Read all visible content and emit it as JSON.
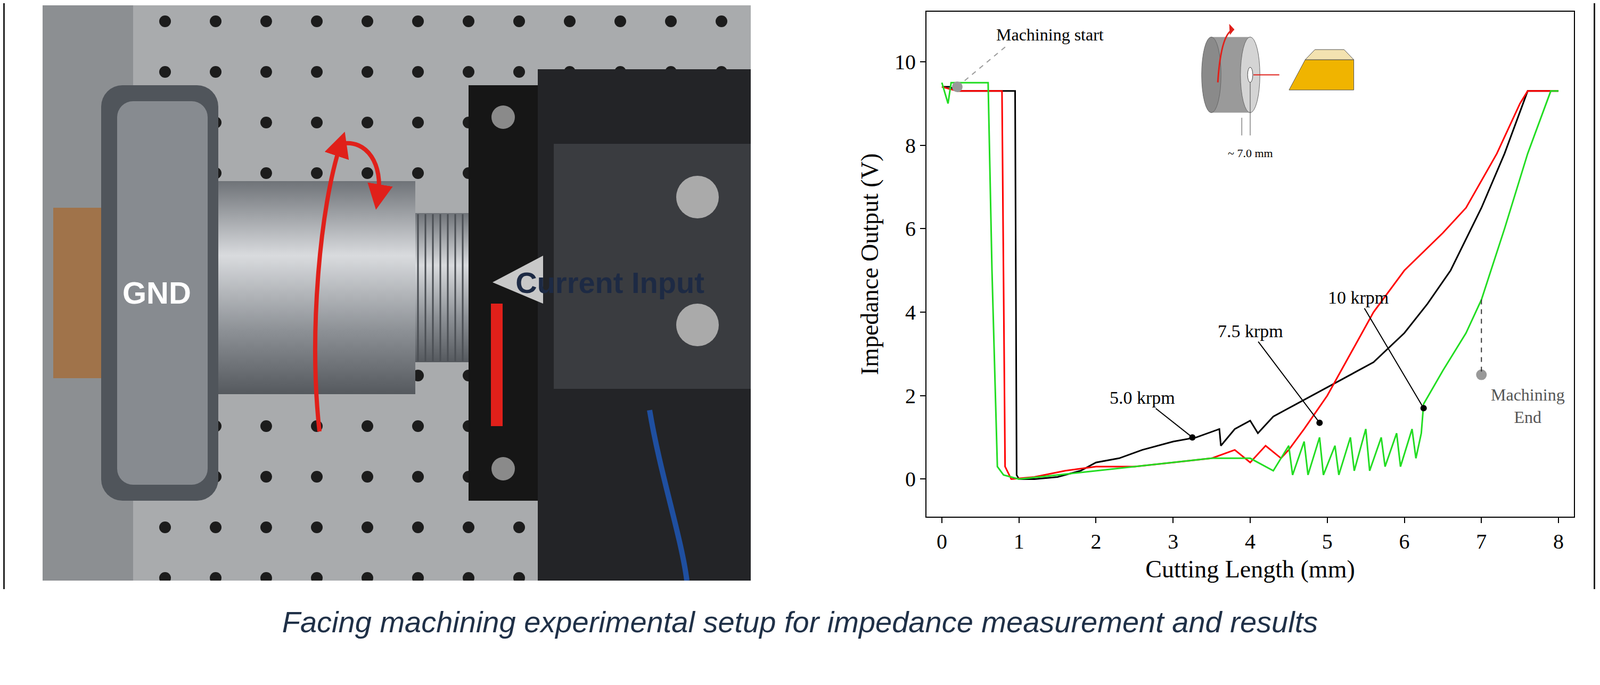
{
  "chart_data": {
    "type": "line",
    "xlabel": "Cutting Length (mm)",
    "ylabel": "Impedance Output (V)",
    "xlim": [
      -0.2,
      8.2
    ],
    "ylim": [
      -0.9,
      11.2
    ],
    "xticks": [
      0,
      1,
      2,
      3,
      4,
      5,
      6,
      7,
      8
    ],
    "yticks": [
      0,
      2,
      4,
      6,
      8,
      10
    ],
    "grid": false,
    "series": [
      {
        "name": "5.0 krpm",
        "color": "#000000",
        "line_style": "solid",
        "x": [
          0,
          0.1,
          0.2,
          0.3,
          0.5,
          0.8,
          0.95,
          0.97,
          1.0,
          1.2,
          1.5,
          1.8,
          2.0,
          2.3,
          2.6,
          3.0,
          3.3,
          3.6,
          3.62,
          3.8,
          4.0,
          4.1,
          4.3,
          4.5,
          4.8,
          5.0,
          5.3,
          5.6,
          6.0,
          6.3,
          6.6,
          7.0,
          7.3,
          7.5,
          7.6,
          8.0
        ],
        "values": [
          9.4,
          9.4,
          9.3,
          9.3,
          9.3,
          9.3,
          9.3,
          0.1,
          0.0,
          0.0,
          0.05,
          0.2,
          0.4,
          0.5,
          0.7,
          0.9,
          1.0,
          1.2,
          0.8,
          1.2,
          1.4,
          1.1,
          1.5,
          1.7,
          2.0,
          2.2,
          2.5,
          2.8,
          3.5,
          4.2,
          5.0,
          6.5,
          7.8,
          8.8,
          9.3,
          9.3
        ],
        "label_at": [
          2.6,
          1.95
        ],
        "point": [
          3.25,
          1.0
        ]
      },
      {
        "name": "7.5 krpm",
        "color": "#ff0000",
        "line_style": "solid",
        "x": [
          0,
          0.2,
          0.5,
          0.78,
          0.82,
          0.9,
          1.2,
          1.6,
          2.0,
          2.5,
          3.0,
          3.5,
          3.8,
          4.0,
          4.2,
          4.4,
          4.5,
          4.7,
          5.0,
          5.3,
          5.6,
          6.0,
          6.5,
          6.8,
          7.2,
          7.5,
          7.6,
          8.0
        ],
        "values": [
          9.4,
          9.3,
          9.3,
          9.3,
          0.3,
          0.0,
          0.05,
          0.2,
          0.3,
          0.3,
          0.4,
          0.5,
          0.7,
          0.4,
          0.8,
          0.5,
          0.7,
          1.2,
          2.0,
          3.0,
          4.0,
          5.0,
          5.9,
          6.5,
          7.8,
          9.0,
          9.3,
          9.3
        ],
        "label_at": [
          4.0,
          3.55
        ],
        "point": [
          4.9,
          1.35
        ]
      },
      {
        "name": "10 krpm",
        "color": "#22dd22",
        "line_style": "solid",
        "x": [
          0,
          0.08,
          0.12,
          0.2,
          0.4,
          0.6,
          0.65,
          0.72,
          0.8,
          1.0,
          1.5,
          2.0,
          2.5,
          3.0,
          3.5,
          4.0,
          4.3,
          4.5,
          4.55,
          4.7,
          4.75,
          4.9,
          4.95,
          5.1,
          5.15,
          5.3,
          5.35,
          5.5,
          5.55,
          5.7,
          5.75,
          5.9,
          5.95,
          6.1,
          6.15,
          6.22,
          6.25,
          6.5,
          6.8,
          7.0,
          7.3,
          7.6,
          7.9,
          8.0
        ],
        "values": [
          9.5,
          9.0,
          9.5,
          9.5,
          9.5,
          9.5,
          5.0,
          0.3,
          0.1,
          0.0,
          0.1,
          0.2,
          0.3,
          0.4,
          0.5,
          0.5,
          0.2,
          0.8,
          0.1,
          0.9,
          0.1,
          1.0,
          0.1,
          0.8,
          0.1,
          1.0,
          0.2,
          1.2,
          0.2,
          1.0,
          0.3,
          1.1,
          0.3,
          1.2,
          0.5,
          1.1,
          1.8,
          2.6,
          3.5,
          4.3,
          6.0,
          7.8,
          9.3,
          9.3
        ],
        "label_at": [
          5.4,
          4.35
        ],
        "point": [
          6.25,
          1.7
        ]
      }
    ],
    "annotations": [
      {
        "text": "Machining start",
        "x": 1.4,
        "y": 10.65,
        "point": [
          0.2,
          9.4
        ]
      },
      {
        "lines": [
          "Machining",
          "End"
        ],
        "x": 7.6,
        "y": 1.75,
        "point": [
          7.0,
          2.5
        ],
        "from": [
          7.0,
          4.3
        ]
      }
    ],
    "inset_label": "~ 7.0 mm"
  },
  "figure": {
    "photo_labels": {
      "ground": "GND",
      "input": "Current Input"
    },
    "caption": "Facing machining experimental setup for impedance measurement and results"
  }
}
